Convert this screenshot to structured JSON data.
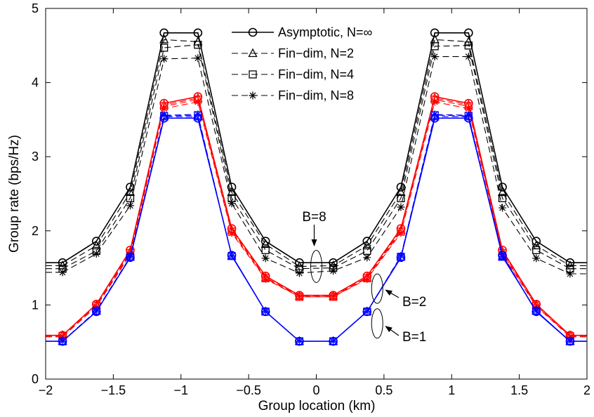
{
  "chart_data": {
    "type": "line",
    "title": "",
    "xlabel": "Group location (km)",
    "ylabel": "Group rate (bps/Hz)",
    "xlim": [
      -2,
      2
    ],
    "ylim": [
      0,
      5
    ],
    "xticks": [
      "−2",
      "−1.5",
      "−1",
      "−0.5",
      "0",
      "0.5",
      "1",
      "1.5",
      "2"
    ],
    "yticks": [
      "0",
      "1",
      "2",
      "3",
      "4",
      "5"
    ],
    "grid": false,
    "legend_position": "top-center",
    "legend": [
      {
        "label": "Asymptotic, N=∞",
        "style": "solid",
        "marker": "circle"
      },
      {
        "label": "Fin−dim, N=2",
        "style": "dashed",
        "marker": "triangle"
      },
      {
        "label": "Fin−dim, N=4",
        "style": "dashed",
        "marker": "square"
      },
      {
        "label": "Fin−dim, N=8",
        "style": "dashed",
        "marker": "star"
      }
    ],
    "x": [
      -1.875,
      -1.625,
      -1.375,
      -1.125,
      -0.875,
      -0.625,
      -0.375,
      -0.125,
      0.125,
      0.375,
      0.625,
      0.875,
      1.125,
      1.375,
      1.625,
      1.875
    ],
    "groups": [
      {
        "label": "B=8",
        "color": "#000000",
        "series": [
          {
            "N": "∞",
            "marker": "circle",
            "dash": false,
            "values": [
              1.57,
              1.86,
              2.59,
              4.67,
              4.67,
              2.59,
              1.86,
              1.57,
              1.57,
              1.86,
              2.59,
              4.67,
              4.67,
              2.59,
              1.86,
              1.57
            ]
          },
          {
            "N": "2",
            "marker": "triangle",
            "dash": true,
            "values": [
              1.53,
              1.8,
              2.52,
              4.58,
              4.55,
              2.52,
              1.82,
              1.52,
              1.53,
              1.8,
              2.52,
              4.58,
              4.55,
              2.52,
              1.8,
              1.53
            ]
          },
          {
            "N": "4",
            "marker": "square",
            "dash": true,
            "values": [
              1.49,
              1.73,
              2.44,
              4.47,
              4.51,
              2.44,
              1.74,
              1.49,
              1.5,
              1.73,
              2.44,
              4.49,
              4.5,
              2.44,
              1.74,
              1.49
            ]
          },
          {
            "N": "8",
            "marker": "star",
            "dash": true,
            "values": [
              1.44,
              1.69,
              2.34,
              4.32,
              4.33,
              2.37,
              1.63,
              1.43,
              1.46,
              1.64,
              2.32,
              4.35,
              4.35,
              2.31,
              1.63,
              1.42
            ]
          }
        ]
      },
      {
        "label": "B=2",
        "color": "#ff0000",
        "series": [
          {
            "N": "∞",
            "marker": "circle",
            "dash": false,
            "values": [
              0.59,
              1.01,
              1.74,
              3.72,
              3.81,
              2.03,
              1.39,
              1.13,
              1.13,
              1.39,
              2.03,
              3.81,
              3.72,
              1.74,
              1.01,
              0.59
            ]
          },
          {
            "N": "2",
            "marker": "triangle",
            "dash": true,
            "values": [
              0.59,
              1.0,
              1.72,
              3.7,
              3.79,
              2.01,
              1.37,
              1.12,
              1.12,
              1.37,
              2.01,
              3.79,
              3.7,
              1.72,
              1.0,
              0.59
            ]
          },
          {
            "N": "4",
            "marker": "square",
            "dash": true,
            "values": [
              0.58,
              0.99,
              1.7,
              3.68,
              3.77,
              1.99,
              1.36,
              1.11,
              1.11,
              1.36,
              1.99,
              3.77,
              3.68,
              1.7,
              0.99,
              0.58
            ]
          },
          {
            "N": "8",
            "marker": "star",
            "dash": true,
            "values": [
              0.57,
              0.98,
              1.68,
              3.65,
              3.74,
              1.97,
              1.35,
              1.11,
              1.11,
              1.35,
              1.97,
              3.74,
              3.65,
              1.68,
              0.98,
              0.57
            ]
          }
        ]
      },
      {
        "label": "B=1",
        "color": "#0000ff",
        "series": [
          {
            "N": "∞",
            "marker": "circle",
            "dash": false,
            "values": [
              0.51,
              0.91,
              1.64,
              3.52,
              3.52,
              1.67,
              0.91,
              0.51,
              0.51,
              0.91,
              1.64,
              3.52,
              3.52,
              1.67,
              0.91,
              0.51
            ]
          },
          {
            "N": "2",
            "marker": "triangle",
            "dash": true,
            "values": [
              0.51,
              0.92,
              1.65,
              3.54,
              3.54,
              1.66,
              0.91,
              0.51,
              0.51,
              0.91,
              1.65,
              3.54,
              3.54,
              1.65,
              0.92,
              0.51
            ]
          },
          {
            "N": "4",
            "marker": "square",
            "dash": true,
            "values": [
              0.51,
              0.92,
              1.65,
              3.55,
              3.56,
              1.66,
              0.91,
              0.51,
              0.51,
              0.91,
              1.65,
              3.56,
              3.55,
              1.65,
              0.92,
              0.51
            ]
          },
          {
            "N": "8",
            "marker": "star",
            "dash": true,
            "values": [
              0.51,
              0.92,
              1.65,
              3.56,
              3.57,
              1.66,
              0.91,
              0.51,
              0.51,
              0.91,
              1.66,
              3.57,
              3.56,
              1.65,
              0.92,
              0.51
            ]
          }
        ]
      }
    ],
    "annotations": [
      {
        "text": "B=8",
        "points_to": [
          0.0,
          1.52
        ]
      },
      {
        "text": "B=2",
        "points_to": [
          0.45,
          1.22
        ]
      },
      {
        "text": "B=1",
        "points_to": [
          0.45,
          0.75
        ]
      }
    ]
  }
}
